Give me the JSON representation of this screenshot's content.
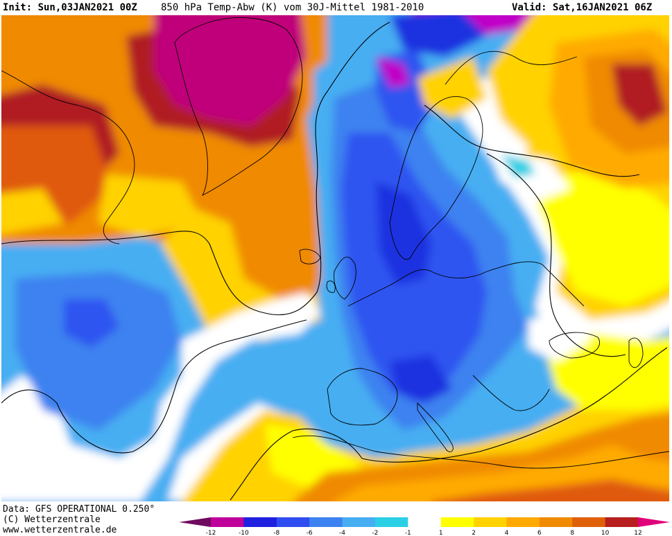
{
  "header": {
    "init_text": "Init: Sun,03JAN2021 00Z",
    "title_text": "850 hPa Temp-Abw (K) vom 30J-Mittel 1981-2010",
    "valid_text": "Valid: Sat,16JAN2021 06Z"
  },
  "footer": {
    "data_source": "Data: GFS OPERATIONAL 0.250°",
    "copyright": "(C) Wetterzentrale",
    "website": "www.wetterzentrale.de"
  },
  "legend": {
    "colors": [
      "#6f0a5f",
      "#c0009a",
      "#1f20e0",
      "#2f4df0",
      "#3c82f0",
      "#47aef2",
      "#2bd0e6",
      "#ffffff",
      "#ffff00",
      "#ffd200",
      "#ffaa00",
      "#f08a00",
      "#e0600a",
      "#b81e1e",
      "#e0007a"
    ],
    "labels": [
      "-12",
      "-10",
      "-8",
      "-6",
      "-4",
      "-2",
      "-1",
      "1",
      "2",
      "4",
      "6",
      "8",
      "10",
      "12"
    ]
  },
  "map": {
    "palette": {
      "magenta": "#c0047a",
      "darkred": "#b01e22",
      "redorange": "#e05a10",
      "orange": "#f08a00",
      "lightorange": "#ffaa00",
      "gold": "#ffd200",
      "yellow": "#ffff00",
      "white": "#ffffff",
      "cyan": "#2bd0e6",
      "lightblue": "#47aef2",
      "midblue": "#3c82f0",
      "blue": "#2f55f0",
      "deepblue": "#1f30e0",
      "purple": "#c000c8"
    }
  }
}
